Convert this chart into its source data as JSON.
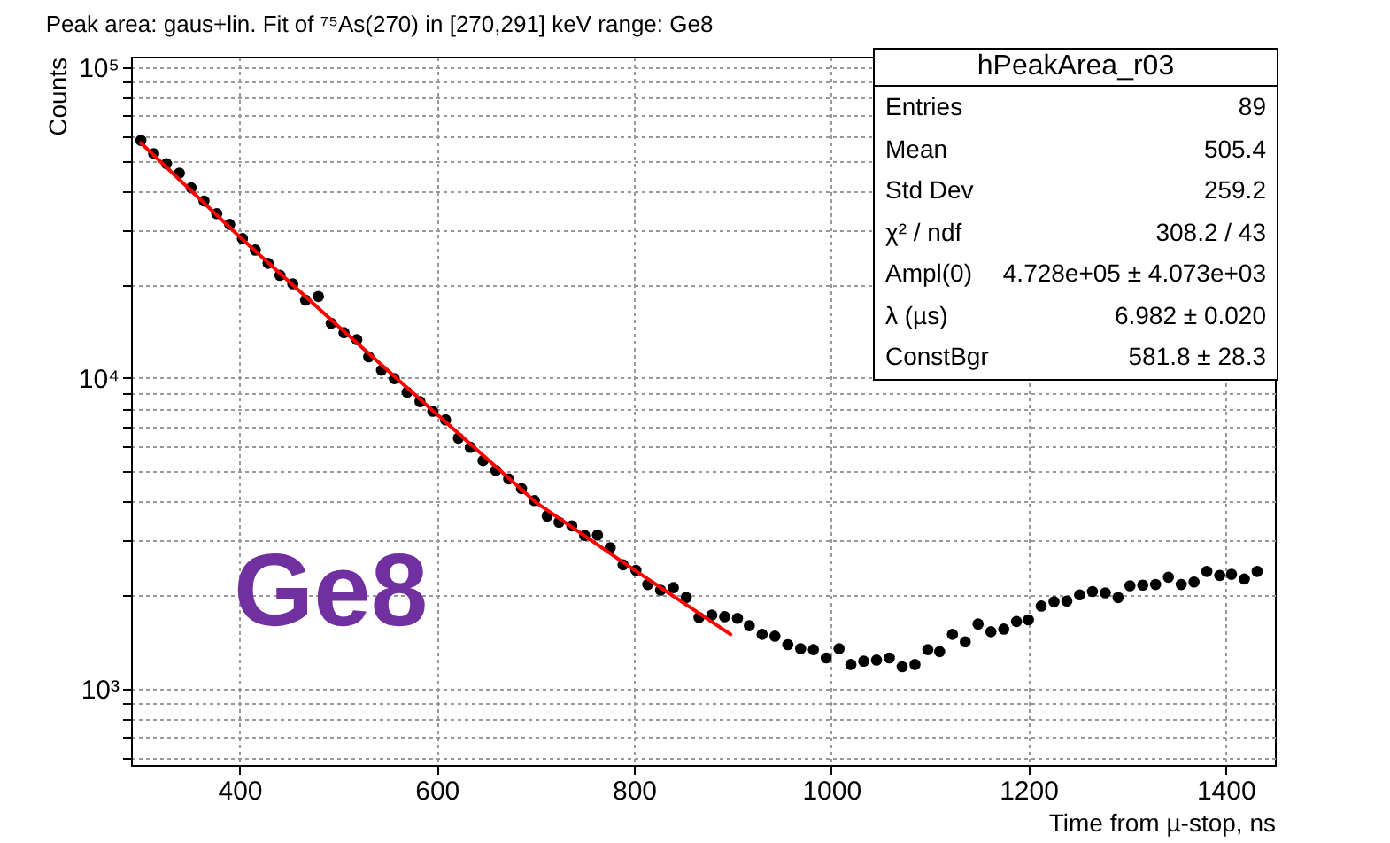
{
  "chart_data": {
    "type": "scatter",
    "title": "Peak area: gaus+lin. Fit of ⁷⁵As(270) in [270,291] keV range: Ge8",
    "xlabel": "Time from µ-stop, ns",
    "ylabel": "Counts",
    "annotations": [
      "Ge8",
      "hPeakArea_r03",
      "Entries",
      "89",
      "Mean",
      "505.4",
      "Std Dev",
      "259.2",
      "χ² / ndf",
      "308.2 / 43",
      "Ampl(0)",
      "4.728e+05 ± 4.073e+03",
      "λ (µs)",
      "6.982 ± 0.020",
      "ConstBgr",
      "581.8 ± 28.3"
    ],
    "log": "y",
    "grid": true,
    "marker": "circle",
    "xlim": [
      290,
      1450
    ],
    "xticks": [
      400,
      600,
      800,
      1000,
      1200,
      1400
    ],
    "ylim": [
      570,
      108000
    ],
    "yticks": [
      {
        "value": 600,
        "label": null
      },
      {
        "value": 700,
        "label": null
      },
      {
        "value": 800,
        "label": null
      },
      {
        "value": 900,
        "label": null
      },
      {
        "value": 1000,
        "label": "10³"
      },
      {
        "value": 2000,
        "label": null
      },
      {
        "value": 3000,
        "label": null
      },
      {
        "value": 4000,
        "label": null
      },
      {
        "value": 5000,
        "label": null
      },
      {
        "value": 6000,
        "label": null
      },
      {
        "value": 7000,
        "label": null
      },
      {
        "value": 8000,
        "label": null
      },
      {
        "value": 9000,
        "label": null
      },
      {
        "value": 10000,
        "label": "10⁴"
      },
      {
        "value": 20000,
        "label": null
      },
      {
        "value": 30000,
        "label": null
      },
      {
        "value": 40000,
        "label": null
      },
      {
        "value": 50000,
        "label": null
      },
      {
        "value": 60000,
        "label": null
      },
      {
        "value": 70000,
        "label": null
      },
      {
        "value": 80000,
        "label": null
      },
      {
        "value": 90000,
        "label": null
      },
      {
        "value": 100000,
        "label": "10⁵"
      }
    ],
    "series": [
      {
        "color": "#000000",
        "x": [
          300,
          313,
          326,
          339,
          351,
          364,
          377,
          390,
          403,
          416,
          429,
          441,
          454,
          467,
          480,
          493,
          506,
          519,
          531,
          544,
          557,
          570,
          583,
          596,
          609,
          622,
          634,
          647,
          660,
          673,
          686,
          699,
          712,
          724,
          737,
          750,
          763,
          776,
          789,
          802,
          814,
          827,
          840,
          853,
          866,
          879,
          892,
          905,
          917,
          930,
          943,
          956,
          969,
          982,
          995,
          1008,
          1020,
          1033,
          1046,
          1059,
          1072,
          1085,
          1098,
          1110,
          1123,
          1136,
          1149,
          1162,
          1175,
          1188,
          1200,
          1213,
          1226,
          1239,
          1252,
          1265,
          1278,
          1291,
          1303,
          1316,
          1329,
          1342,
          1355,
          1368,
          1381,
          1394,
          1406,
          1419,
          1432
        ],
        "values": [
          58100,
          52700,
          48900,
          45600,
          40900,
          37100,
          33800,
          31200,
          28100,
          25800,
          23400,
          21400,
          20100,
          17800,
          18300,
          15000,
          14000,
          13300,
          11700,
          10600,
          9960,
          9000,
          8400,
          7820,
          7340,
          6410,
          5990,
          5430,
          5050,
          4740,
          4410,
          4040,
          3600,
          3440,
          3350,
          3120,
          3130,
          2850,
          2510,
          2410,
          2170,
          2080,
          2120,
          1970,
          1700,
          1730,
          1710,
          1690,
          1600,
          1500,
          1480,
          1390,
          1350,
          1340,
          1260,
          1350,
          1200,
          1230,
          1240,
          1260,
          1180,
          1200,
          1340,
          1320,
          1500,
          1420,
          1620,
          1530,
          1560,
          1650,
          1670,
          1850,
          1910,
          1920,
          2010,
          2060,
          2040,
          1970,
          2150,
          2160,
          2170,
          2290,
          2170,
          2210,
          2390,
          2320,
          2340,
          2260,
          2390
        ]
      },
      {
        "type": "line",
        "marker": "none",
        "color": "#ff0000",
        "x": [
          300,
          400,
          500,
          600,
          700,
          800,
          898
        ],
        "values": [
          57000,
          28500,
          14700,
          7660,
          4000,
          2420,
          1500
        ]
      }
    ]
  }
}
